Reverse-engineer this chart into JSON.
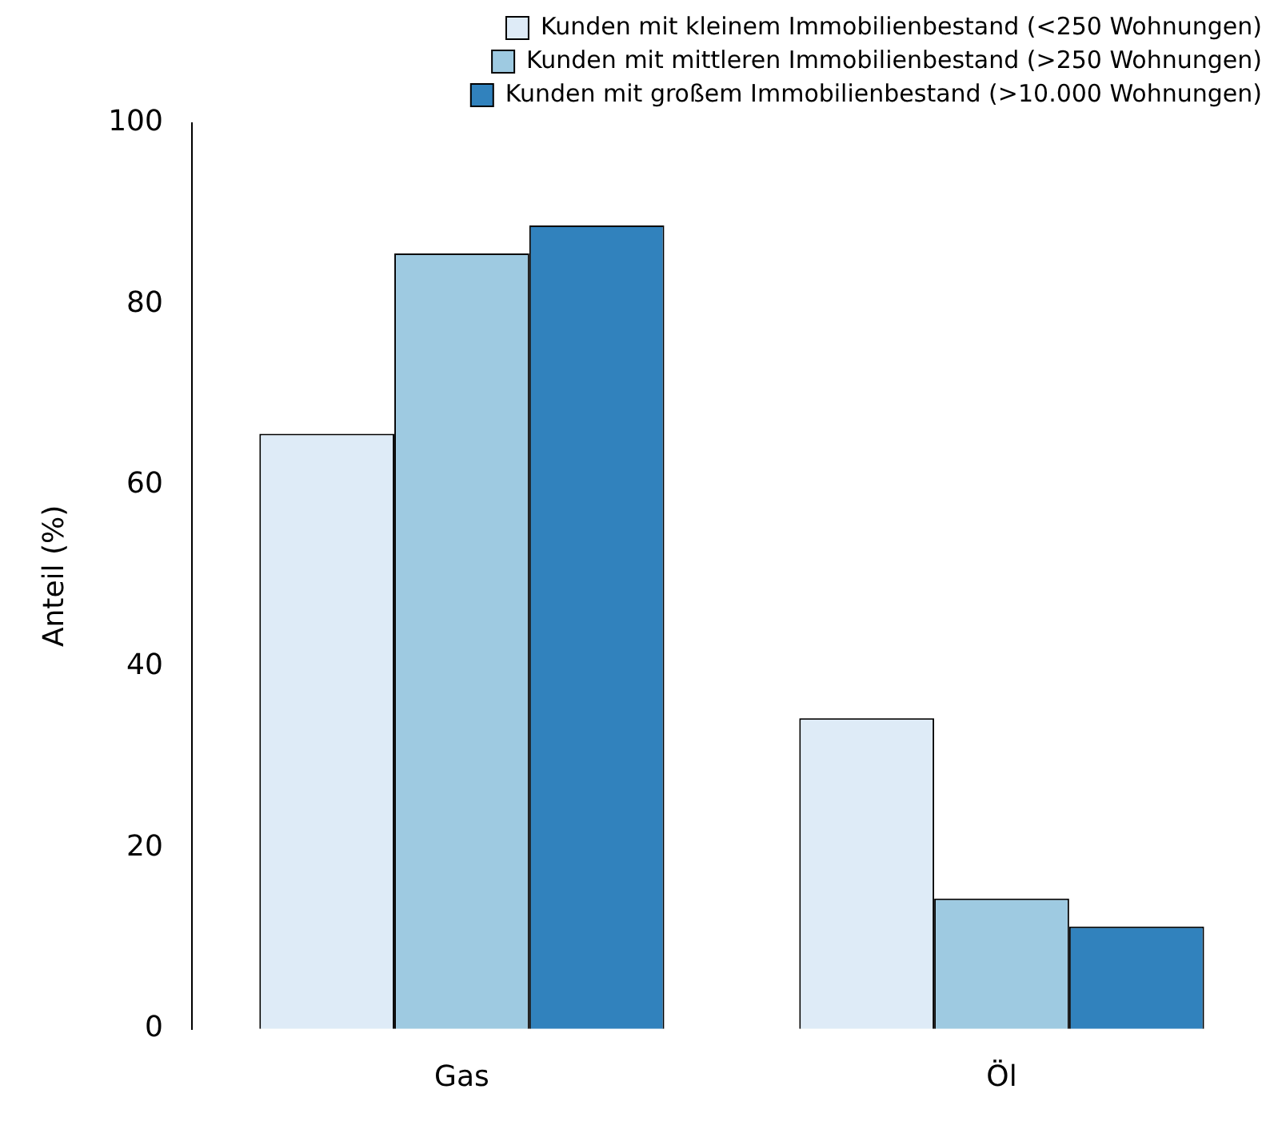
{
  "chart_data": {
    "type": "bar",
    "ylabel": "Anteil (%)",
    "categories": [
      "Gas",
      "Öl"
    ],
    "series": [
      {
        "name": "Kunden mit kleinem Immobilienbestand (<250 Wohnungen)",
        "color": "#deebf7",
        "values": [
          65.7,
          34.3
        ]
      },
      {
        "name": "Kunden mit mittleren Immobilienbestand (>250 Wohnungen)",
        "color": "#9ecae1",
        "values": [
          85.6,
          14.4
        ]
      },
      {
        "name": "Kunden mit großem Immobilienbestand (>10.000 Wohnungen)",
        "color": "#3182bd",
        "values": [
          88.7,
          11.3
        ]
      }
    ],
    "ylim": [
      0,
      100
    ],
    "yticks": [
      0,
      20,
      40,
      60,
      80,
      100
    ],
    "grid": false,
    "legend": "top right"
  }
}
